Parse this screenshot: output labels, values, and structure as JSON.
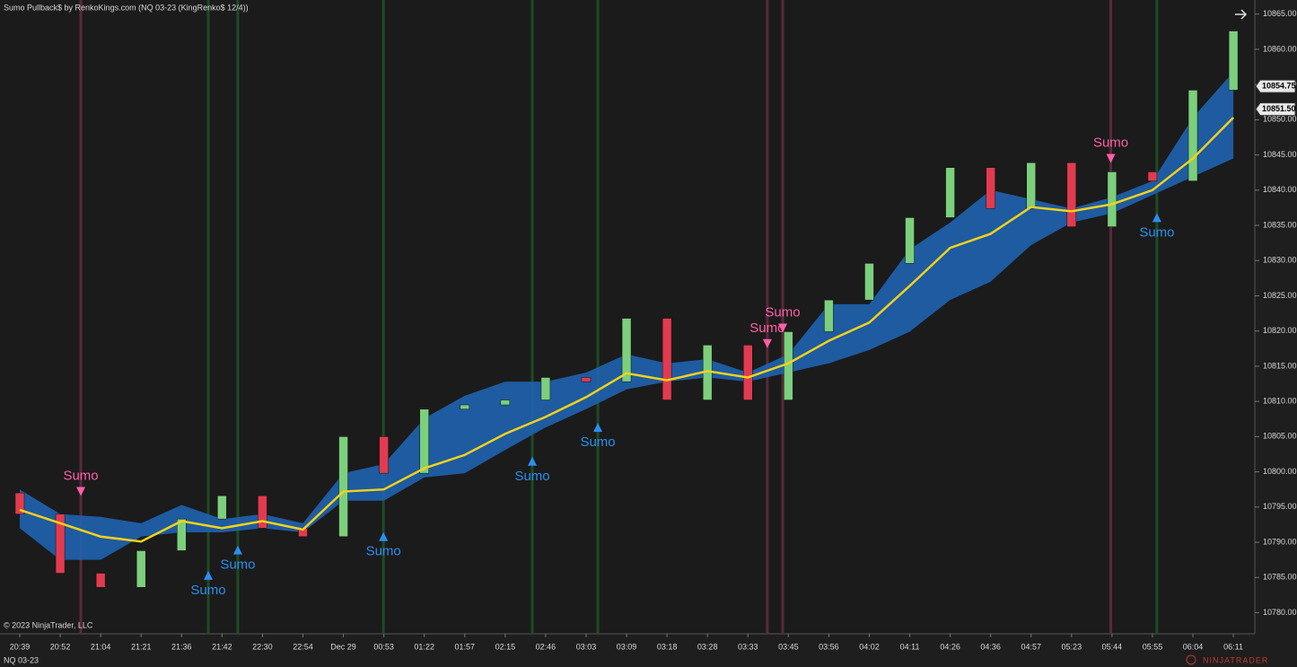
{
  "chart_data": {
    "type": "candlestick",
    "title": "Sumo Pullback$ by RenkoKings.com (NQ 03-23 (KingRenko$ 12/4))",
    "copyright": "© 2023 NinjaTrader, LLC",
    "instrument": "NQ 03-23",
    "brand": "NINJATRADER",
    "categories": [
      "20:39",
      "20:52",
      "21:04",
      "21:21",
      "21:36",
      "21:42",
      "22:30",
      "22:54",
      "Dec 29",
      "00:53",
      "01:22",
      "01:57",
      "02:15",
      "02:46",
      "03:03",
      "03:09",
      "03:18",
      "03:28",
      "03:33",
      "03:45",
      "03:56",
      "04:02",
      "04:11",
      "04:26",
      "04:36",
      "04:57",
      "05:23",
      "05:44",
      "05:55",
      "06:04",
      "06:11"
    ],
    "open": [
      10797,
      10794,
      10785.6,
      10783.6,
      10788.8,
      10793.3,
      10796.6,
      10792,
      10790.8,
      10805,
      10799.8,
      10808.9,
      10809.5,
      10810.2,
      10813.4,
      10812.8,
      10821.8,
      10810.2,
      10818,
      10810.2,
      10819.9,
      10824.4,
      10829.6,
      10836.1,
      10843.2,
      10837.4,
      10843.9,
      10834.8,
      10842.6,
      10841.3,
      10854.2
    ],
    "close": [
      10794,
      10785.6,
      10783.6,
      10788.8,
      10793.3,
      10796.6,
      10792,
      10790.8,
      10805,
      10799.8,
      10808.9,
      10809.5,
      10810.2,
      10813.4,
      10812.8,
      10821.8,
      10810.2,
      10818,
      10810.2,
      10819.9,
      10824.4,
      10829.6,
      10836.1,
      10843.2,
      10837.4,
      10843.9,
      10834.8,
      10842.6,
      10841.3,
      10854.2,
      10862.6
    ],
    "up_color": "#7ccf7c",
    "down_color": "#e23b4f",
    "ema": {
      "color": "#f3d21a",
      "values": [
        10794.6,
        10792.7,
        10790.8,
        10790.1,
        10793,
        10792,
        10793,
        10791.8,
        10797.2,
        10797.5,
        10800.5,
        10802.4,
        10805.4,
        10807.8,
        10810.6,
        10814,
        10813,
        10814.3,
        10813.4,
        10815.4,
        10818.6,
        10821.2,
        10826.4,
        10831.8,
        10833.8,
        10837.6,
        10837,
        10838,
        10840,
        10844.5,
        10850.3
      ]
    },
    "band": {
      "color": "#1f63b0",
      "upper": [
        10797.5,
        10794,
        10793.6,
        10792.7,
        10795.3,
        10793.3,
        10794,
        10792.7,
        10799.8,
        10801.1,
        10807.6,
        10810.8,
        10812.8,
        10812.8,
        10814.1,
        10816.7,
        10815.4,
        10816,
        10814.1,
        10816.7,
        10823.8,
        10823.8,
        10831.6,
        10835.4,
        10840,
        10838.7,
        10837.4,
        10839,
        10841.3,
        10850.3,
        10856.8
      ],
      "lower": [
        10792,
        10787.5,
        10787.5,
        10790.8,
        10791.4,
        10791.4,
        10792,
        10791.4,
        10795.9,
        10795.9,
        10799.2,
        10799.8,
        10803.1,
        10806.3,
        10808.9,
        10811.7,
        10812.8,
        10813.4,
        10812.8,
        10814.1,
        10815.4,
        10817.3,
        10819.9,
        10824.4,
        10827,
        10832.2,
        10835.4,
        10836.7,
        10839.3,
        10841.9,
        10844.5
      ]
    },
    "signals": [
      {
        "label": "Sumo",
        "direction": "down",
        "at": 1.51,
        "price": 10797.2,
        "color": "#ff5fa8",
        "line_color": "#5a2a3a"
      },
      {
        "label": "Sumo",
        "direction": "up",
        "at": 4.66,
        "price": 10785.3,
        "color": "#2a8ff0",
        "line_color": "#1f4a26"
      },
      {
        "label": "Sumo",
        "direction": "up",
        "at": 5.39,
        "price": 10788.9,
        "color": "#2a8ff0",
        "line_color": "#1f4a26"
      },
      {
        "label": "Sumo",
        "direction": "up",
        "at": 8.99,
        "price": 10790.8,
        "color": "#2a8ff0",
        "line_color": "#1f4a26"
      },
      {
        "label": "Sumo",
        "direction": "up",
        "at": 12.67,
        "price": 10801.5,
        "color": "#2a8ff0",
        "line_color": "#1f4a26"
      },
      {
        "label": "Sumo",
        "direction": "up",
        "at": 14.29,
        "price": 10806.3,
        "color": "#2a8ff0",
        "line_color": "#1f4a26"
      },
      {
        "label": "Sumo",
        "direction": "down",
        "at": 18.48,
        "price": 10818.2,
        "color": "#ff5fa8",
        "line_color": "#5a2a3a"
      },
      {
        "label": "Sumo",
        "direction": "down",
        "at": 18.86,
        "price": 10820.4,
        "color": "#ff5fa8",
        "line_color": "#5a2a3a"
      },
      {
        "label": "Sumo",
        "direction": "down",
        "at": 26.97,
        "price": 10844.5,
        "color": "#ff5fa8",
        "line_color": "#5a2a3a"
      },
      {
        "label": "Sumo",
        "direction": "up",
        "at": 28.11,
        "price": 10836.1,
        "color": "#2a8ff0",
        "line_color": "#1f4a26"
      }
    ],
    "markers": [
      10854.75,
      {
        "value": 10851.5,
        "label": "10851.50"
      }
    ],
    "ylim": [
      10777,
      10867
    ],
    "yticks": [
      {
        "value": 10780,
        "label": "10780.00"
      },
      {
        "value": 10785,
        "label": "10785.00"
      },
      {
        "value": 10790,
        "label": "10790.00"
      },
      {
        "value": 10795,
        "label": "10795.00"
      },
      {
        "value": 10800,
        "label": "10800.00"
      },
      {
        "value": 10805,
        "label": "10805.00"
      },
      {
        "value": 10810,
        "label": "10810.00"
      },
      {
        "value": 10815,
        "label": "10815.00"
      },
      {
        "value": 10820,
        "label": "10820.00"
      },
      {
        "value": 10825,
        "label": "10825.00"
      },
      {
        "value": 10830,
        "label": "10830.00"
      },
      {
        "value": 10835,
        "label": "10835.00"
      },
      {
        "value": 10840,
        "label": "10840.00"
      },
      {
        "value": 10845,
        "label": "10845.00"
      },
      {
        "value": 10850,
        "label": "10850.00"
      },
      {
        "value": 10855,
        "label": "10855.00"
      },
      {
        "value": 10860,
        "label": "10860.00"
      },
      {
        "value": 10865,
        "label": "10865.00"
      }
    ]
  }
}
